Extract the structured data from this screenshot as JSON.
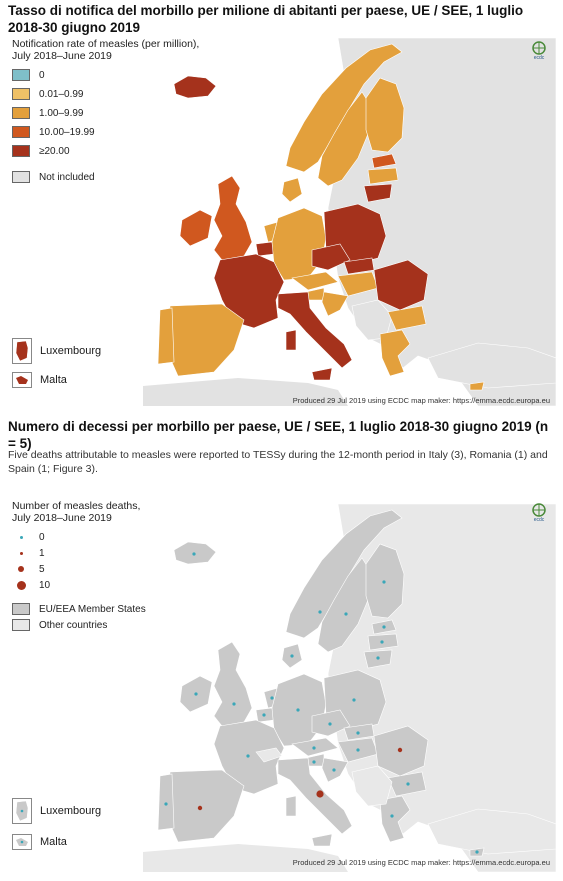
{
  "map1": {
    "title": "Tasso di notifica del morbillo per milione di abitanti per paese, UE / SEE, 1 luglio 2018-30 giugno 2019",
    "legend_title_line1": "Notification rate of measles (per million),",
    "legend_title_line2": "July 2018–June 2019",
    "legend": [
      {
        "label": "0",
        "color": "#7fbfc9"
      },
      {
        "label": "0.01–0.99",
        "color": "#efc167"
      },
      {
        "label": "1.00–9.99",
        "color": "#e3a03c"
      },
      {
        "label": "10.00–19.99",
        "color": "#d0581f"
      },
      {
        "label": "≥20.00",
        "color": "#a5321c"
      },
      {
        "label": "Not included",
        "color": "#e2e2e2"
      }
    ],
    "insets": {
      "luxembourg": "Luxembourg",
      "malta": "Malta"
    },
    "produced": "Produced 29 Jul 2019 using ECDC map maker: https://emma.ecdc.europa.eu",
    "logo_text": "ecdc"
  },
  "map2": {
    "title": "Numero di decessi per morbillo per paese, UE / SEE, 1 luglio 2018-30 giugno 2019 (n = 5)",
    "description": "Five deaths attributable to measles were reported to TESSy during the 12-month period in Italy (3), Romania (1) and Spain (1; Figure 3).",
    "legend_title_line1": "Number of measles deaths,",
    "legend_title_line2": "July 2018–June 2019",
    "legend": [
      {
        "label": "0",
        "color": "#3aa7b8",
        "size": 3
      },
      {
        "label": "1",
        "color": "#a5321c",
        "size": 3
      },
      {
        "label": "5",
        "color": "#a5321c",
        "size": 6
      },
      {
        "label": "10",
        "color": "#a5321c",
        "size": 9
      }
    ],
    "fill_legend": [
      {
        "label": "EU/EEA Member States",
        "color": "#c9c9c9"
      },
      {
        "label": "Other countries",
        "color": "#e8e8e8"
      }
    ],
    "insets": {
      "luxembourg": "Luxembourg",
      "malta": "Malta"
    },
    "produced": "Produced 29 Jul 2019 using ECDC map maker: https://emma.ecdc.europa.eu",
    "logo_text": "ecdc"
  },
  "colors": {
    "ocean": "#ffffff",
    "non_eu": "#e2e2e2",
    "border": "#ffffff"
  }
}
